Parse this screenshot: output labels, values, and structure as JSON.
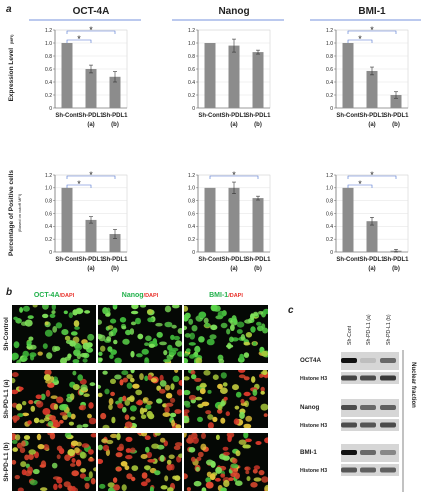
{
  "panels": {
    "a": "a",
    "b": "b",
    "c": "c"
  },
  "headers": [
    "OCT-4A",
    "Nanog",
    "BMI-1"
  ],
  "chart_data": [
    {
      "type": "bar",
      "row": "expression",
      "marker": "OCT-4A",
      "ylabel": "Expression Level",
      "ylabel_sub": "(MFI)",
      "categories": [
        "Sh-Cont",
        "Sh-PDL1",
        "Sh-PDL1"
      ],
      "subcategories": [
        "",
        "(a)",
        "(b)"
      ],
      "values": [
        1.0,
        0.6,
        0.48
      ],
      "errors": [
        0.0,
        0.06,
        0.08
      ],
      "ylim": [
        0,
        1.2
      ],
      "yticks": [
        "0",
        "0.2",
        "0.4",
        "0.6",
        "0.8",
        "1.0",
        "1.2"
      ],
      "significance": [
        {
          "from": 0,
          "to": 1,
          "label": "*"
        },
        {
          "from": 0,
          "to": 2,
          "label": "*"
        }
      ]
    },
    {
      "type": "bar",
      "row": "expression",
      "marker": "Nanog",
      "categories": [
        "Sh-Cont",
        "Sh-PDL1",
        "Sh-PDL1"
      ],
      "subcategories": [
        "",
        "(a)",
        "(b)"
      ],
      "values": [
        1.0,
        0.96,
        0.86
      ],
      "errors": [
        0.0,
        0.1,
        0.03
      ],
      "ylim": [
        0,
        1.2
      ],
      "yticks": [
        "0",
        "0.2",
        "0.4",
        "0.6",
        "0.8",
        "1.0",
        "1.2"
      ],
      "significance": []
    },
    {
      "type": "bar",
      "row": "expression",
      "marker": "BMI-1",
      "categories": [
        "Sh-Cont",
        "Sh-PDL1",
        "Sh-PDL1"
      ],
      "subcategories": [
        "",
        "(a)",
        "(b)"
      ],
      "values": [
        1.0,
        0.57,
        0.2
      ],
      "errors": [
        0.0,
        0.06,
        0.05
      ],
      "ylim": [
        0,
        1.2
      ],
      "yticks": [
        "0",
        "0.2",
        "0.4",
        "0.6",
        "0.8",
        "1.0",
        "1.2"
      ],
      "significance": [
        {
          "from": 0,
          "to": 1,
          "label": "*"
        },
        {
          "from": 0,
          "to": 2,
          "label": "*"
        }
      ]
    },
    {
      "type": "bar",
      "row": "positive",
      "marker": "OCT-4A",
      "ylabel": "Percentage of Positive cells",
      "ylabel_sub": "(Based on cutoff MFI)",
      "categories": [
        "Sh-Cont",
        "Sh-PDL1",
        "Sh-PDL1"
      ],
      "subcategories": [
        "",
        "(a)",
        "(b)"
      ],
      "values": [
        1.0,
        0.5,
        0.28
      ],
      "errors": [
        0.0,
        0.05,
        0.07
      ],
      "ylim": [
        0,
        1.2
      ],
      "yticks": [
        "0",
        "0.2",
        "0.4",
        "0.6",
        "0.8",
        "1.0",
        "1.2"
      ],
      "significance": [
        {
          "from": 0,
          "to": 1,
          "label": "*"
        },
        {
          "from": 0,
          "to": 2,
          "label": "*"
        }
      ]
    },
    {
      "type": "bar",
      "row": "positive",
      "marker": "Nanog",
      "categories": [
        "Sh-Cont",
        "Sh-PDL1",
        "Sh-PDL1"
      ],
      "subcategories": [
        "",
        "(a)",
        "(b)"
      ],
      "values": [
        1.0,
        1.0,
        0.84
      ],
      "errors": [
        0.0,
        0.09,
        0.03
      ],
      "ylim": [
        0,
        1.2
      ],
      "yticks": [
        "0",
        "0.2",
        "0.4",
        "0.6",
        "0.8",
        "1.0",
        "1.2"
      ],
      "significance": [
        {
          "from": 0,
          "to": 2,
          "label": "*"
        }
      ]
    },
    {
      "type": "bar",
      "row": "positive",
      "marker": "BMI-1",
      "categories": [
        "Sh-Cont",
        "Sh-PDL1",
        "Sh-PDL1"
      ],
      "subcategories": [
        "",
        "(a)",
        "(b)"
      ],
      "values": [
        1.0,
        0.48,
        0.02
      ],
      "errors": [
        0.0,
        0.06,
        0.02
      ],
      "ylim": [
        0,
        1.2
      ],
      "yticks": [
        "0",
        "0.2",
        "0.4",
        "0.6",
        "0.8",
        "1.0",
        "1.2"
      ],
      "significance": [
        {
          "from": 0,
          "to": 1,
          "label": "*"
        },
        {
          "from": 0,
          "to": 2,
          "label": "*"
        }
      ]
    }
  ],
  "micro": {
    "columns": [
      {
        "marker": "OCT-4A",
        "stain": "DAPI",
        "color": "#22b14c"
      },
      {
        "marker": "Nanog",
        "stain": "DAPI",
        "color": "#22b14c"
      },
      {
        "marker": "BMI-1",
        "stain": "DAPI",
        "color": "#22b14c"
      }
    ],
    "separator": "/",
    "stain_color": "#e8312a",
    "rows": [
      "Sh-Control",
      "Sh-PD-L1 (a)",
      "Sh-PD-L1 (b)"
    ]
  },
  "western": {
    "lanes": [
      "Sh-Cont",
      "Sh-PD-L1 (a)",
      "Sh-PD-L1 (b)"
    ],
    "blots": [
      {
        "target": "OCT4A",
        "loading": "Histone H3"
      },
      {
        "target": "Nanog",
        "loading": "Histone H3"
      },
      {
        "target": "BMI-1",
        "loading": "Histone H3"
      }
    ],
    "side_label": "Nuclear fraction"
  },
  "colors": {
    "bar": "#8c8c8c",
    "header_line": "#4a6fd0",
    "sig_line": "#4a6fd0",
    "green": "#22b14c",
    "red": "#e8312a"
  }
}
